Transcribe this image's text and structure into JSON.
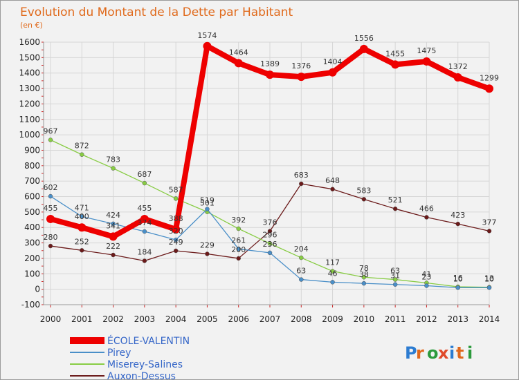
{
  "title": "Evolution du Montant de la Dette par Habitant",
  "unit": "(en €)",
  "logo": "Proxiti",
  "chart_data": {
    "type": "line",
    "title": "Evolution du Montant de la Dette par Habitant",
    "ylabel": "(en €)",
    "xlabel": "",
    "categories": [
      "2000",
      "2001",
      "2002",
      "2003",
      "2004",
      "2005",
      "2006",
      "2007",
      "2008",
      "2009",
      "2010",
      "2011",
      "2012",
      "2013",
      "2014"
    ],
    "ylim": [
      -100,
      1600
    ],
    "yticks": [
      -100,
      0,
      100,
      200,
      300,
      400,
      500,
      600,
      700,
      800,
      900,
      1000,
      1100,
      1200,
      1300,
      1400,
      1500,
      1600
    ],
    "grid": true,
    "legend_position": "bottom-left",
    "series": [
      {
        "name": "ÉCOLE-VALENTIN",
        "color": "#ee0000",
        "values": [
          455,
          400,
          341,
          455,
          388,
          1574,
          1464,
          1389,
          1376,
          1404,
          1556,
          1455,
          1475,
          1372,
          1299
        ]
      },
      {
        "name": "Pirey",
        "color": "#4a8fc8",
        "values": [
          602,
          471,
          424,
          374,
          320,
          519,
          261,
          236,
          63,
          46,
          38,
          31,
          23,
          10,
          10
        ]
      },
      {
        "name": "Miserey-Salines",
        "color": "#88cc44",
        "values": [
          967,
          872,
          783,
          687,
          587,
          501,
          392,
          296,
          204,
          117,
          78,
          63,
          41,
          16,
          13
        ]
      },
      {
        "name": "Auxon-Dessus",
        "color": "#6b1a1a",
        "values": [
          280,
          252,
          222,
          184,
          249,
          229,
          200,
          376,
          683,
          648,
          583,
          521,
          466,
          423,
          377
        ]
      }
    ]
  }
}
